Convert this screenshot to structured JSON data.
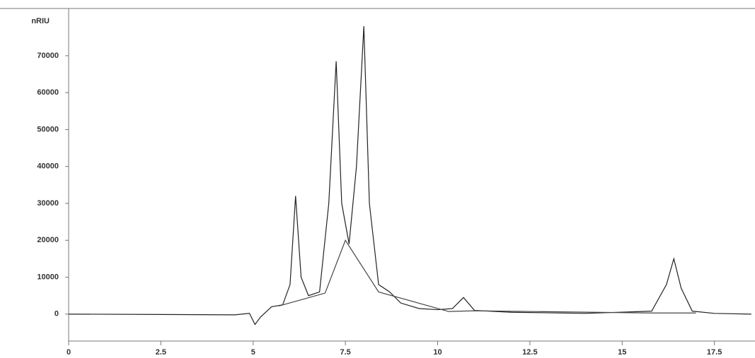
{
  "chart_data": {
    "type": "line",
    "ylabel": "nRIU",
    "xlim": [
      0,
      18.6
    ],
    "ylim": [
      -7300,
      82800
    ],
    "xticks": [
      0,
      2.5,
      5,
      7.5,
      10,
      12.5,
      15,
      17.5
    ],
    "yticks": [
      0,
      10000,
      20000,
      30000,
      40000,
      50000,
      60000,
      70000
    ],
    "series": [
      {
        "color": "#222222",
        "x": [
          0,
          2.5,
          4.5,
          4.9,
          5.05,
          5.2,
          5.5,
          5.8,
          6.0,
          6.15,
          6.3,
          6.5,
          6.8,
          7.05,
          7.25,
          7.4,
          7.6,
          7.8,
          8.0,
          8.15,
          8.4,
          8.7,
          9.0,
          9.5,
          10.0,
          10.4,
          10.7,
          11.0,
          12,
          14,
          15.8,
          16.2,
          16.4,
          16.6,
          16.9,
          17.5,
          18.5
        ],
        "values": [
          0,
          -100,
          -200,
          200,
          -2800,
          -800,
          2000,
          2500,
          8000,
          32000,
          10000,
          5000,
          6000,
          30000,
          68500,
          30000,
          19000,
          40000,
          78000,
          30000,
          8000,
          6000,
          3000,
          1500,
          1200,
          1500,
          4500,
          1000,
          500,
          200,
          800,
          8000,
          15000,
          7000,
          800,
          200,
          0
        ]
      },
      {
        "color": "#444444",
        "x": [
          5.7,
          6.95,
          7.5,
          8.4,
          10.3,
          11.0,
          15.8,
          17.0
        ],
        "values": [
          2200,
          5700,
          20000,
          6000,
          700,
          900,
          300,
          300
        ]
      }
    ]
  }
}
